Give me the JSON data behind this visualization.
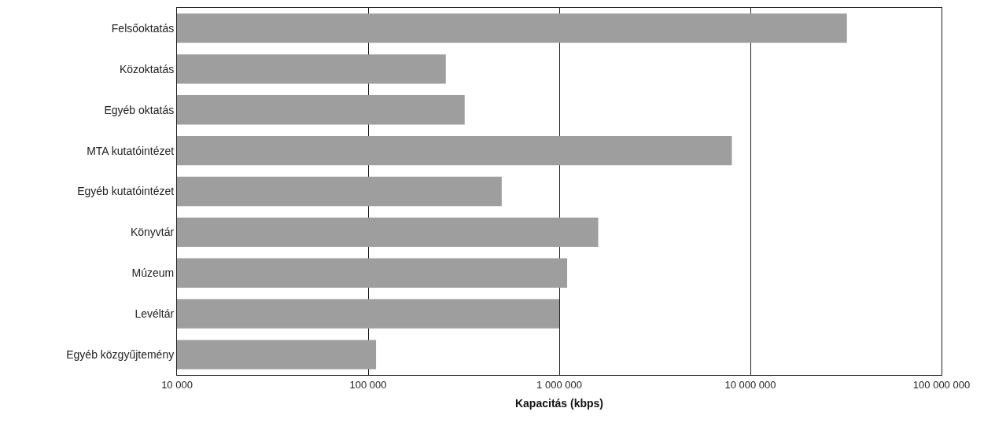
{
  "chart_data": {
    "type": "bar",
    "orientation": "horizontal",
    "log": "x",
    "xlabel": "Kapacitás (kbps)",
    "categories": [
      "Felsőoktatás",
      "Közoktatás",
      "Egyéb oktatás",
      "MTA kutatóintézet",
      "Egyéb kutatóintézet",
      "Könyvtár",
      "Múzeum",
      "Levéltár",
      "Egyéb közgyűjtemény"
    ],
    "values": [
      32000000,
      255000,
      320000,
      8000000,
      500000,
      1600000,
      1100000,
      1000000,
      110000
    ],
    "color": "#9e9e9e",
    "xlim": [
      10000,
      100000000
    ],
    "xticks": [
      {
        "value": 10000,
        "label": "10 000"
      },
      {
        "value": 100000,
        "label": "100 000"
      },
      {
        "value": 1000000,
        "label": "1 000 000"
      },
      {
        "value": 10000000,
        "label": "10 000 000"
      },
      {
        "value": 100000000,
        "label": "100 000 000"
      }
    ],
    "grid": "x"
  }
}
